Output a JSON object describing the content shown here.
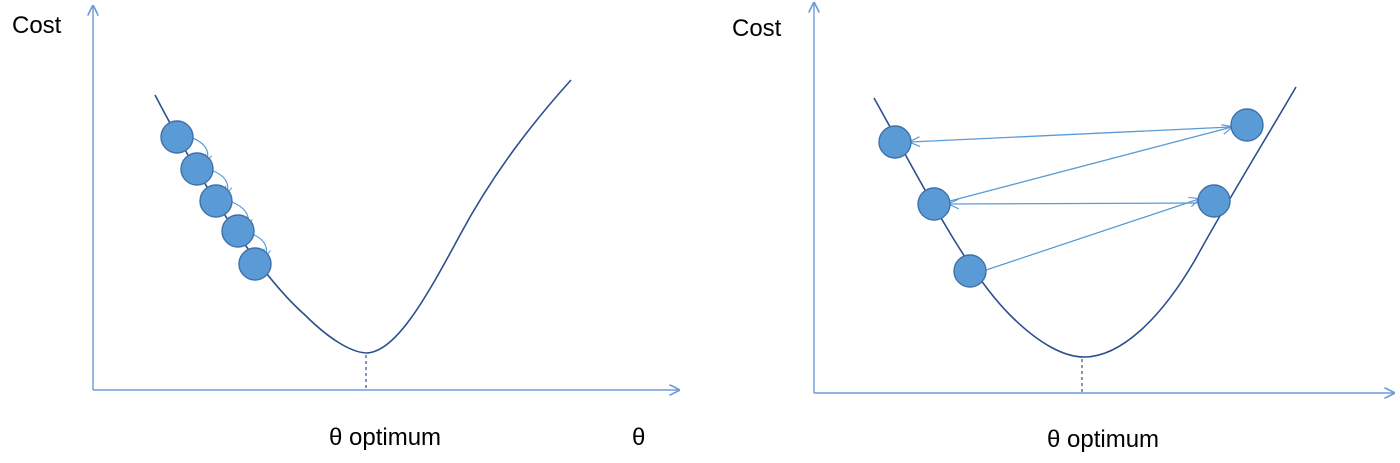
{
  "left_chart": {
    "y_label": "Cost",
    "x_label": "θ",
    "optimum_label": "θ optimum",
    "ball_count": 5
  },
  "right_chart": {
    "y_label": "Cost",
    "optimum_label": "θ optimum",
    "ball_count": 5
  },
  "colors": {
    "axis": "#6f9bd6",
    "curve": "#2d4f8f",
    "ball_fill": "#5b9bd5",
    "ball_stroke": "#3f6fab",
    "arrow": "#5b9bd5"
  }
}
